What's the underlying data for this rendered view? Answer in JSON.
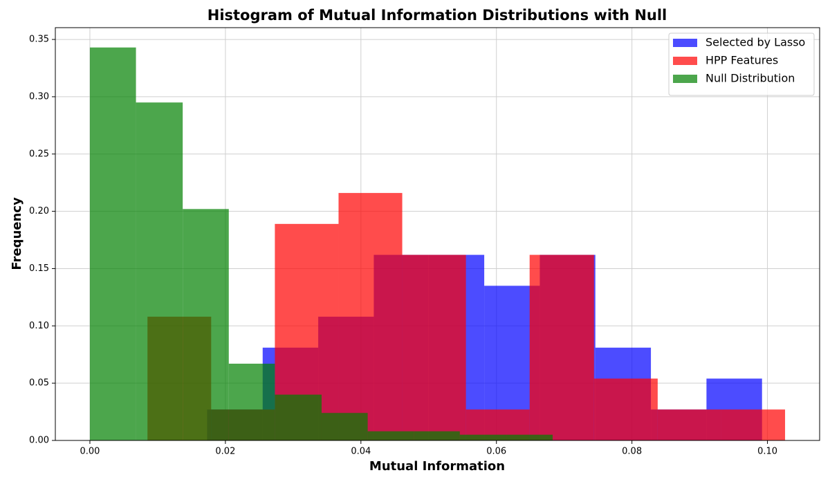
{
  "chart_data": {
    "type": "histogram",
    "title": "Histogram of Mutual Information Distributions with Null",
    "x_label": "Mutual Information",
    "y_label": "Frequency",
    "xlim": [
      -0.0051,
      0.1077
    ],
    "ylim": [
      0,
      0.3603
    ],
    "xticks": [
      {
        "value": 0,
        "label": "0.00"
      },
      {
        "value": 0.02,
        "label": "0.02"
      },
      {
        "value": 0.04,
        "label": "0.04"
      },
      {
        "value": 0.06,
        "label": "0.06"
      },
      {
        "value": 0.08,
        "label": "0.08"
      },
      {
        "value": 0.1,
        "label": "0.10"
      }
    ],
    "yticks": [
      {
        "value": 0,
        "label": "0.00"
      },
      0.05,
      {
        "value": 0.1,
        "label": "0.10"
      },
      0.15,
      {
        "value": 0.2,
        "label": "0.20"
      },
      0.25,
      {
        "value": 0.3,
        "label": "0.30"
      },
      0.35
    ],
    "grid": true,
    "legend": "upper right",
    "opacity": 0.7,
    "series": [
      {
        "name": "Selected by Lasso",
        "color": "#0000ff",
        "bins": [
          0.0173,
          0.0255,
          0.0337,
          0.0419,
          0.05,
          0.0582,
          0.0664,
          0.0746,
          0.0828,
          0.091,
          0.0992
        ],
        "values": [
          0.027,
          0.081,
          0.108,
          0.162,
          0.162,
          0.135,
          0.162,
          0.081,
          0.027,
          0.054
        ]
      },
      {
        "name": "HPP Features",
        "color": "#ff0000",
        "bins": [
          0.0085,
          0.0179,
          0.0273,
          0.0367,
          0.0461,
          0.0555,
          0.0649,
          0.0744,
          0.0838,
          0.0932,
          0.1026
        ],
        "values": [
          0.108,
          0.027,
          0.189,
          0.216,
          0.162,
          0.027,
          0.162,
          0.054,
          0.027,
          0.027
        ]
      },
      {
        "name": "Null Distribution",
        "color": "#008000",
        "bins": [
          0,
          0.0068,
          0.0137,
          0.0205,
          0.0273,
          0.0342,
          0.041,
          0.0478,
          0.0546,
          0.0615,
          0.0683
        ],
        "values": [
          0.343,
          0.295,
          0.202,
          0.067,
          0.04,
          0.024,
          0.008,
          0.008,
          0.005,
          0.005
        ]
      }
    ]
  }
}
